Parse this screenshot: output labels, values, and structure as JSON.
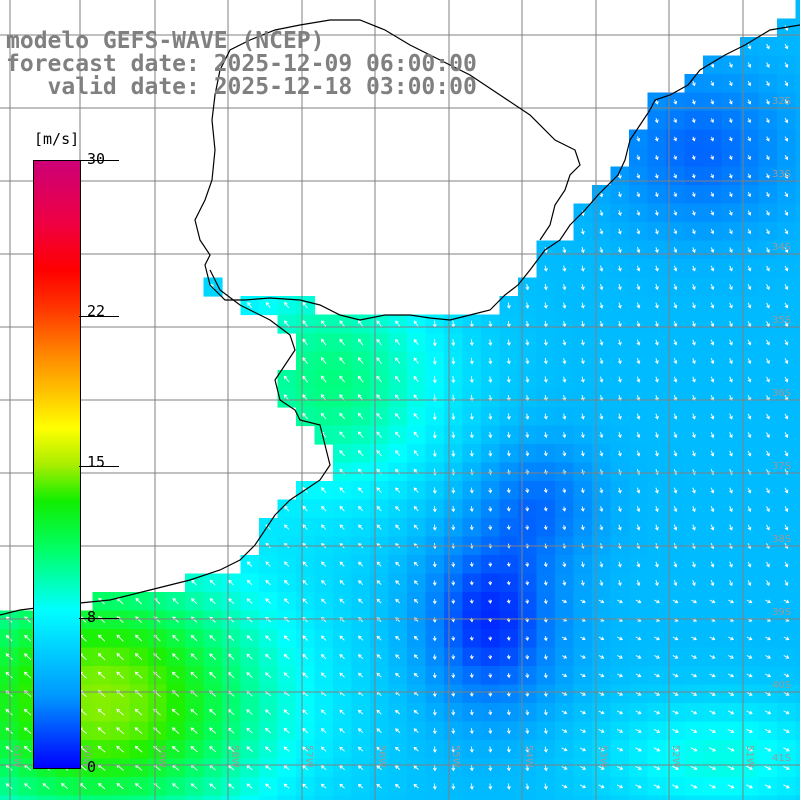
{
  "title": {
    "line1": "modelo GEFS-WAVE (NCEP)",
    "line2": "forecast date: 2025-12-09 06:00:00",
    "line3": "   valid date: 2025-12-18 03:00:00"
  },
  "legend": {
    "unit": "[m/s]",
    "ticks": [
      "30",
      "22",
      "15",
      "8",
      "0"
    ],
    "tick_values": [
      30,
      22,
      15,
      8,
      0
    ]
  },
  "axes": {
    "lat_labels": [
      "32S",
      "33S",
      "34S",
      "35S",
      "36S",
      "37S",
      "38S",
      "39S",
      "40S",
      "41S"
    ],
    "lon_labels": [
      "61W",
      "60W",
      "59W",
      "58W",
      "57W",
      "56W",
      "55W",
      "54W",
      "53W",
      "52W",
      "51W"
    ]
  },
  "colors": {
    "land": "#ffffff",
    "grid": "#808080",
    "coast": "#000000",
    "arrows": "#ffffff"
  }
}
